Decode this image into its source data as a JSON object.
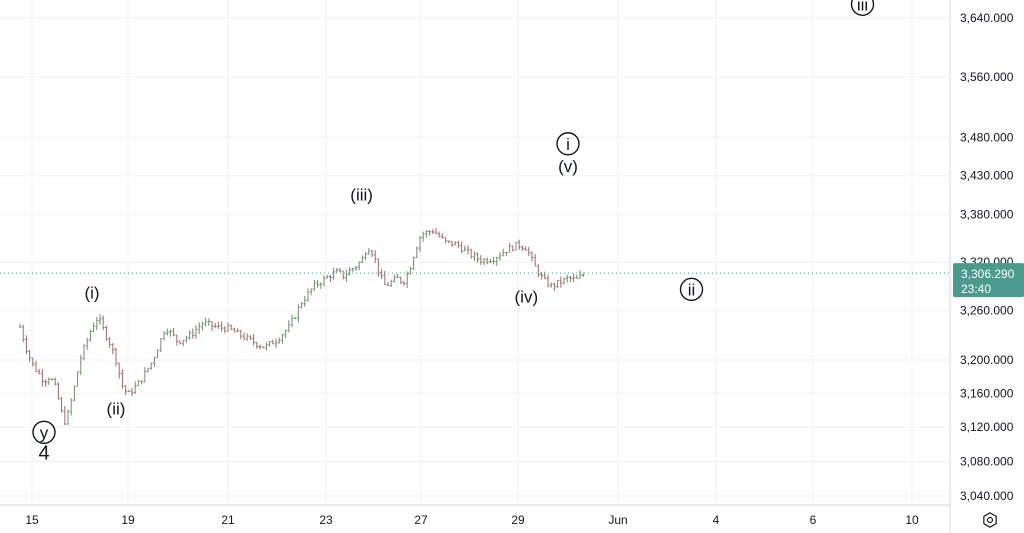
{
  "chart_data": {
    "type": "candlestick",
    "y_axis": {
      "ticks": [
        3040,
        3080,
        3120,
        3160,
        3200,
        3260,
        3320,
        3380,
        3430,
        3480,
        3560,
        3640
      ],
      "tick_labels": [
        "3,040.000",
        "3,080.000",
        "3,120.000",
        "3,160.000",
        "3,200.000",
        "3,260.000",
        "3,320.000",
        "3,380.000",
        "3,430.000",
        "3,480.000",
        "3,560.000",
        "3,640.000"
      ],
      "scale": "log",
      "side": "right"
    },
    "x_axis": {
      "tick_labels": [
        "15",
        "19",
        "21",
        "23",
        "27",
        "29",
        "Jun",
        "4",
        "6",
        "10"
      ]
    },
    "current_price": {
      "value": 3306.29,
      "label": "3,306.290",
      "countdown": "23:40",
      "color": "#4a9b8e"
    },
    "colors": {
      "up": "#6f8f6b",
      "down": "#a46a67",
      "grid": "#eef0f3"
    },
    "price_path": [
      [
        "05-14 12:00",
        3240
      ],
      [
        "05-14 18:00",
        3215
      ],
      [
        "05-15 00:00",
        3195
      ],
      [
        "05-15 06:00",
        3185
      ],
      [
        "05-15 12:00",
        3175
      ],
      [
        "05-15 18:00",
        3180
      ],
      [
        "05-16 00:00",
        3165
      ],
      [
        "05-16 04:00",
        3145
      ],
      [
        "05-16 08:00",
        3125
      ],
      [
        "05-16 12:00",
        3135
      ],
      [
        "05-16 18:00",
        3165
      ],
      [
        "05-17 00:00",
        3200
      ],
      [
        "05-17 06:00",
        3220
      ],
      [
        "05-17 12:00",
        3240
      ],
      [
        "05-17 18:00",
        3252
      ],
      [
        "05-18 00:00",
        3235
      ],
      [
        "05-18 06:00",
        3220
      ],
      [
        "05-18 12:00",
        3200
      ],
      [
        "05-18 18:00",
        3170
      ],
      [
        "05-19 00:00",
        3158
      ],
      [
        "05-19 06:00",
        3175
      ],
      [
        "05-19 12:00",
        3200
      ],
      [
        "05-19 18:00",
        3240
      ],
      [
        "05-20 00:00",
        3222
      ],
      [
        "05-20 06:00",
        3230
      ],
      [
        "05-20 12:00",
        3245
      ],
      [
        "05-20 18:00",
        3240
      ],
      [
        "05-21 00:00",
        3238
      ],
      [
        "05-21 06:00",
        3230
      ],
      [
        "05-21 12:00",
        3222
      ],
      [
        "05-21 18:00",
        3215
      ],
      [
        "05-22 00:00",
        3225
      ],
      [
        "05-22 06:00",
        3240
      ],
      [
        "05-22 12:00",
        3270
      ],
      [
        "05-22 18:00",
        3290
      ],
      [
        "05-23 00:00",
        3300
      ],
      [
        "05-23 06:00",
        3305
      ],
      [
        "05-23 12:00",
        3308
      ],
      [
        "05-23 18:00",
        3302
      ],
      [
        "05-24 00:00",
        3310
      ],
      [
        "05-24 06:00",
        3315
      ],
      [
        "05-24 12:00",
        3322
      ],
      [
        "05-24 18:00",
        3340
      ],
      [
        "05-25 00:00",
        3330
      ],
      [
        "05-25 06:00",
        3305
      ],
      [
        "05-25 12:00",
        3290
      ],
      [
        "05-25 18:00",
        3295
      ],
      [
        "05-26 00:00",
        3300
      ],
      [
        "05-26 06:00",
        3295
      ],
      [
        "05-26 12:00",
        3310
      ],
      [
        "05-26 18:00",
        3335
      ],
      [
        "05-27 00:00",
        3355
      ],
      [
        "05-27 06:00",
        3360
      ],
      [
        "05-27 12:00",
        3345
      ],
      [
        "05-27 18:00",
        3342
      ],
      [
        "05-28 00:00",
        3330
      ],
      [
        "05-28 06:00",
        3322
      ],
      [
        "05-28 12:00",
        3325
      ],
      [
        "05-28 18:00",
        3335
      ],
      [
        "05-29 00:00",
        3342
      ],
      [
        "05-29 06:00",
        3338
      ],
      [
        "05-29 12:00",
        3315
      ],
      [
        "05-29 18:00",
        3298
      ],
      [
        "05-30 00:00",
        3290
      ],
      [
        "05-30 06:00",
        3295
      ],
      [
        "05-30 12:00",
        3300
      ],
      [
        "05-30 18:00",
        3298
      ],
      [
        "05-31 00:00",
        3306
      ]
    ],
    "wave_labels": [
      {
        "text": "(i)",
        "x": "05-17 12:00",
        "y": 3275,
        "style": "plain"
      },
      {
        "text": "(ii)",
        "x": "05-18 12:00",
        "y": 3135,
        "style": "plain"
      },
      {
        "text": "y",
        "x": "05-15 12:00",
        "y": 3108,
        "style": "circle"
      },
      {
        "text": "4",
        "x": "05-15 12:00",
        "y": 3082,
        "style": "big"
      },
      {
        "text": "(iii)",
        "x": "05-24 12:00",
        "y": 3398,
        "style": "plain"
      },
      {
        "text": "(iv)",
        "x": "05-29 06:00",
        "y": 3270,
        "style": "plain"
      },
      {
        "text": "i",
        "x": "05-30 12:00",
        "y": 3465,
        "style": "circle"
      },
      {
        "text": "(v)",
        "x": "05-30 12:00",
        "y": 3435,
        "style": "plain"
      },
      {
        "text": "ii",
        "x": "06-03 06:00",
        "y": 3280,
        "style": "circle"
      },
      {
        "text": "iii",
        "x": "06-08 00:00",
        "y": 3652,
        "style": "circle"
      }
    ]
  },
  "ui": {
    "settings_icon": "gear-icon"
  }
}
